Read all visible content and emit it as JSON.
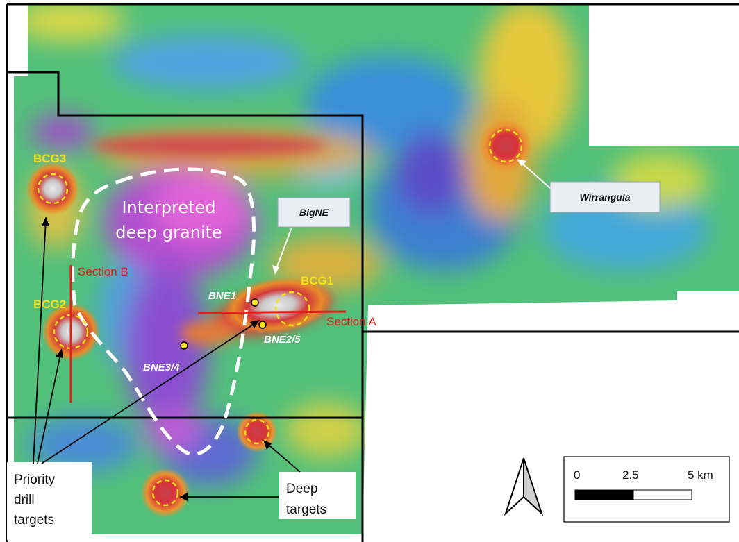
{
  "granite_label": [
    "Interpreted",
    "deep granite"
  ],
  "targets": [
    {
      "name": "BCG3",
      "label": "BCG3"
    },
    {
      "name": "BCG2",
      "label": "BCG2"
    },
    {
      "name": "BCG1",
      "label": "BCG1"
    }
  ],
  "prospects": [
    {
      "name": "BNE1",
      "label": "BNE1"
    },
    {
      "name": "BNE2/5",
      "label": "BNE2/5"
    },
    {
      "name": "BNE3/4",
      "label": "BNE3/4"
    }
  ],
  "sections": {
    "a": "Section A",
    "b": "Section B"
  },
  "callouts": {
    "bigne": "BigNE",
    "wirrangula": "Wirrangula"
  },
  "legend_notes": {
    "priority": [
      "Priority",
      "drill",
      "targets"
    ],
    "deep": [
      "Deep",
      "targets"
    ]
  },
  "scale_bar": {
    "labels": [
      "0",
      "2.5",
      "5 km"
    ]
  },
  "north_arrow": "north-arrow-icon",
  "colors": {
    "target_ring": "#f7e11a",
    "section_line": "#e0201a",
    "tenement_boundary": "#000000",
    "granite_outline": "#ffffff"
  }
}
